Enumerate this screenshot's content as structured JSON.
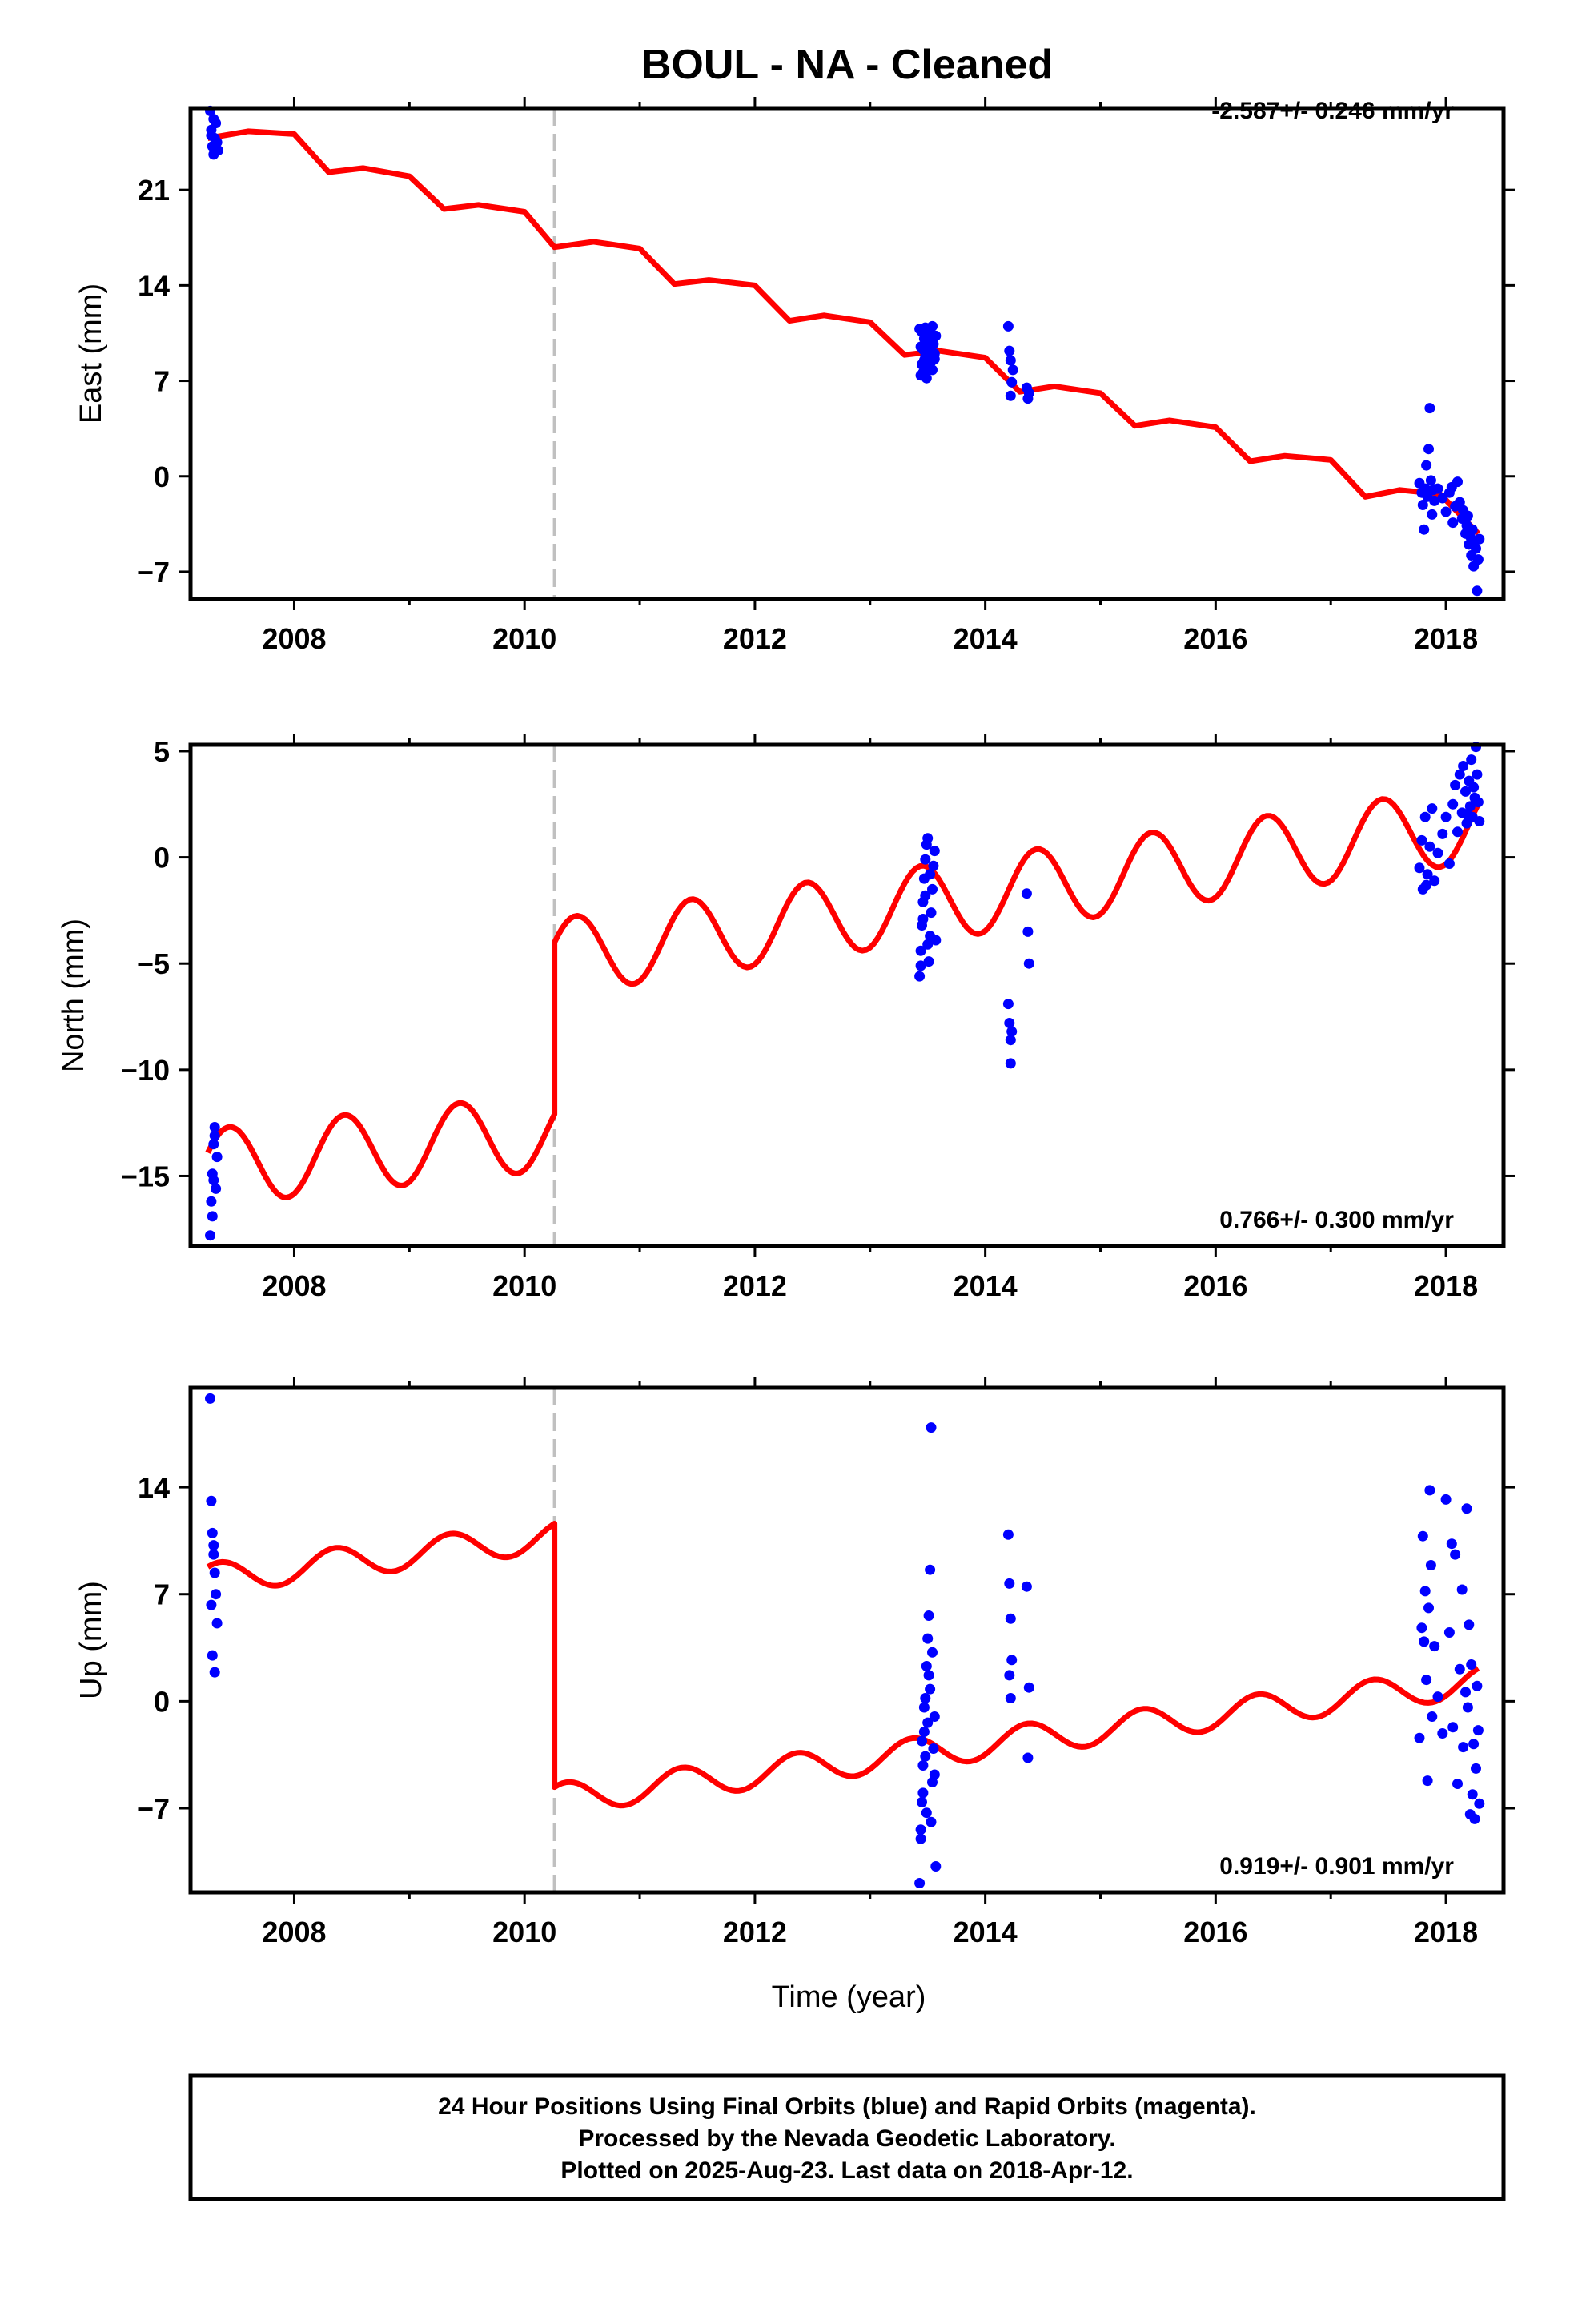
{
  "title": "BOUL  - NA - Cleaned",
  "footer": {
    "lines": [
      "24 Hour Positions Using Final Orbits (blue) and Rapid Orbits (magenta).",
      "Processed by the Nevada Geodetic Laboratory.",
      "Plotted on 2025-Aug-23. Last data on 2018-Apr-12."
    ]
  },
  "colors": {
    "data": "#0000ff",
    "model": "#ff0000",
    "step": "#c0c0c0",
    "frame": "#000000"
  },
  "chart_data": [
    {
      "type": "scatter",
      "name": "east",
      "ylabel": "East (mm)",
      "xlabel": "",
      "rate": "-2.587+/- 0.246 mm/yr",
      "xlim": [
        2007.1,
        2018.5
      ],
      "ylim": [
        -9,
        27
      ],
      "xticks": [
        2008,
        2010,
        2012,
        2014,
        2016,
        2018
      ],
      "yticks": [
        -7,
        0,
        7,
        14,
        21
      ],
      "step_epoch": 2010.26,
      "model": {
        "x": [
          2007.25,
          2007.6,
          2008.0,
          2008.3,
          2008.6,
          2009.0,
          2009.3,
          2009.6,
          2010.0,
          2010.26,
          2010.6,
          2011.0,
          2011.3,
          2011.6,
          2012.0,
          2012.3,
          2012.6,
          2013.0,
          2013.3,
          2013.6,
          2014.0,
          2014.3,
          2014.6,
          2015.0,
          2015.3,
          2015.6,
          2016.0,
          2016.3,
          2016.6,
          2017.0,
          2017.3,
          2017.6,
          2017.95,
          2018.28
        ],
        "y": [
          24.8,
          25.3,
          25.1,
          22.3,
          22.6,
          22.0,
          19.6,
          19.9,
          19.4,
          16.8,
          17.2,
          16.7,
          14.1,
          14.4,
          14.0,
          11.4,
          11.8,
          11.3,
          8.9,
          9.2,
          8.7,
          6.2,
          6.6,
          6.1,
          3.7,
          4.1,
          3.6,
          1.1,
          1.5,
          1.2,
          -1.5,
          -1.0,
          -1.3,
          -4.2
        ]
      },
      "points": {
        "x": [
          2007.27,
          2007.28,
          2007.29,
          2007.3,
          2007.31,
          2007.32,
          2007.33,
          2007.34,
          2007.3,
          2007.28,
          2013.43,
          2013.44,
          2013.45,
          2013.46,
          2013.47,
          2013.48,
          2013.49,
          2013.5,
          2013.51,
          2013.52,
          2013.53,
          2013.54,
          2013.55,
          2013.56,
          2013.57,
          2013.44,
          2013.46,
          2013.48,
          2013.5,
          2013.52,
          2013.54,
          2013.56,
          2013.45,
          2013.47,
          2013.49,
          2013.51,
          2013.53,
          2013.55,
          2014.2,
          2014.21,
          2014.22,
          2014.23,
          2014.22,
          2014.24,
          2014.36,
          2014.37,
          2014.38,
          2017.77,
          2017.79,
          2017.8,
          2017.82,
          2017.83,
          2017.84,
          2017.86,
          2017.87,
          2017.88,
          2017.9,
          2017.85,
          2017.93,
          2017.97,
          2018.0,
          2018.03,
          2018.06,
          2018.08,
          2018.1,
          2018.12,
          2018.14,
          2018.15,
          2018.17,
          2018.18,
          2018.2,
          2018.21,
          2018.22,
          2018.23,
          2018.24,
          2018.25,
          2018.26,
          2018.27,
          2018.28,
          2018.29,
          2017.81,
          2017.89,
          2018.05,
          2018.19
        ],
        "y": [
          26.8,
          25.0,
          24.2,
          23.6,
          24.8,
          25.9,
          24.5,
          23.9,
          26.2,
          25.4,
          10.8,
          9.5,
          8.2,
          7.6,
          10.1,
          8.8,
          9.9,
          7.9,
          10.5,
          9.1,
          8.4,
          11.0,
          9.7,
          8.6,
          10.3,
          7.4,
          9.3,
          10.9,
          8.0,
          9.6,
          7.8,
          9.0,
          10.6,
          8.5,
          7.2,
          9.8,
          8.9,
          10.2,
          11.0,
          9.2,
          8.5,
          6.9,
          5.9,
          7.8,
          6.5,
          5.7,
          6.1,
          -0.5,
          -1.2,
          -2.1,
          -0.9,
          0.8,
          -1.5,
          5.0,
          -0.3,
          -2.8,
          -1.8,
          2.0,
          -0.9,
          -1.6,
          -2.6,
          -1.2,
          -3.4,
          -2.2,
          -0.4,
          -1.9,
          -3.1,
          -2.5,
          -4.2,
          -3.6,
          -5.0,
          -4.4,
          -5.8,
          -3.9,
          -6.6,
          -4.8,
          -5.3,
          -8.4,
          -6.1,
          -4.6,
          -3.9,
          -1.0,
          -0.8,
          -2.9
        ]
      }
    },
    {
      "type": "scatter",
      "name": "north",
      "ylabel": "North (mm)",
      "xlabel": "",
      "rate": "0.766+/- 0.300 mm/yr",
      "xlim": [
        2007.1,
        2018.5
      ],
      "ylim": [
        -18.3,
        5.3
      ],
      "xticks": [
        2008,
        2010,
        2012,
        2014,
        2016,
        2018
      ],
      "yticks": [
        -15,
        -10,
        -5,
        0,
        5
      ],
      "step_epoch": 2010.26,
      "model": {
        "amp": 1.8,
        "period": 1.0,
        "phase": 0.4,
        "segments": [
          {
            "x0": 2007.25,
            "x1": 2010.26,
            "y0": -14.6,
            "y1": -12.9
          },
          {
            "x0": 2010.26,
            "x1": 2018.28,
            "y0": -4.7,
            "y1": 1.6
          }
        ]
      },
      "points": {
        "x": [
          2007.27,
          2007.28,
          2007.29,
          2007.3,
          2007.31,
          2007.32,
          2007.33,
          2007.29,
          2007.31,
          2007.3,
          2013.43,
          2013.44,
          2013.45,
          2013.46,
          2013.47,
          2013.48,
          2013.49,
          2013.5,
          2013.51,
          2013.52,
          2013.53,
          2013.54,
          2013.55,
          2013.56,
          2013.57,
          2013.44,
          2013.46,
          2013.48,
          2013.5,
          2013.52,
          2014.2,
          2014.21,
          2014.22,
          2014.22,
          2014.23,
          2014.36,
          2014.37,
          2014.38,
          2017.77,
          2017.79,
          2017.8,
          2017.82,
          2017.84,
          2017.86,
          2017.88,
          2017.9,
          2017.93,
          2017.97,
          2018.0,
          2018.03,
          2018.06,
          2018.08,
          2018.1,
          2018.12,
          2018.14,
          2018.15,
          2018.17,
          2018.18,
          2018.2,
          2018.21,
          2018.22,
          2018.23,
          2018.24,
          2018.25,
          2018.26,
          2018.27,
          2018.28,
          2018.29,
          2017.83,
          2018.19
        ],
        "y": [
          -17.8,
          -16.2,
          -14.9,
          -13.5,
          -12.7,
          -15.6,
          -14.1,
          -16.9,
          -13.1,
          -15.2,
          -5.6,
          -4.4,
          -3.2,
          -2.1,
          -1.0,
          -0.1,
          0.6,
          0.9,
          -4.9,
          -3.7,
          -2.6,
          -1.5,
          -0.4,
          0.3,
          -3.9,
          -5.1,
          -2.9,
          -1.8,
          -4.1,
          -0.8,
          -6.9,
          -7.8,
          -8.6,
          -9.7,
          -8.2,
          -1.7,
          -3.5,
          -5.0,
          -0.5,
          0.8,
          -1.5,
          1.9,
          -0.8,
          0.5,
          2.3,
          -1.1,
          0.2,
          1.1,
          1.9,
          -0.3,
          2.5,
          3.4,
          1.2,
          3.9,
          2.1,
          4.3,
          3.1,
          1.6,
          3.6,
          2.4,
          4.6,
          1.9,
          3.3,
          2.8,
          5.2,
          3.9,
          2.6,
          1.7,
          -1.3,
          2.0
        ]
      }
    },
    {
      "type": "scatter",
      "name": "up",
      "ylabel": "Up (mm)",
      "xlabel": "Time (year)",
      "rate": "0.919+/- 0.901 mm/yr",
      "xlim": [
        2007.1,
        2018.5
      ],
      "ylim": [
        -12.5,
        20.5
      ],
      "xticks": [
        2008,
        2010,
        2012,
        2014,
        2016,
        2018
      ],
      "yticks": [
        -7,
        0,
        7,
        14
      ],
      "step_epoch": 2010.26,
      "model": {
        "amp": 1.0,
        "period": 1.0,
        "phase": 0.9,
        "segments": [
          {
            "x0": 2007.25,
            "x1": 2010.26,
            "y0": 8.0,
            "y1": 10.8
          },
          {
            "x0": 2010.26,
            "x1": 2018.28,
            "y0": -6.4,
            "y1": 1.3
          }
        ]
      },
      "points": {
        "x": [
          2007.27,
          2007.28,
          2007.29,
          2007.3,
          2007.31,
          2007.32,
          2007.33,
          2007.29,
          2007.31,
          2007.3,
          2007.28,
          2013.43,
          2013.44,
          2013.45,
          2013.46,
          2013.47,
          2013.48,
          2013.49,
          2013.5,
          2013.51,
          2013.52,
          2013.53,
          2013.54,
          2013.55,
          2013.56,
          2013.57,
          2013.44,
          2013.46,
          2013.48,
          2013.5,
          2013.52,
          2013.54,
          2013.56,
          2013.45,
          2013.47,
          2013.49,
          2013.51,
          2013.53,
          2014.2,
          2014.21,
          2014.22,
          2014.22,
          2014.23,
          2014.21,
          2014.36,
          2014.37,
          2014.38,
          2017.77,
          2017.79,
          2017.8,
          2017.82,
          2017.83,
          2017.84,
          2017.86,
          2017.87,
          2017.88,
          2017.9,
          2017.85,
          2017.93,
          2017.97,
          2018.0,
          2018.03,
          2018.06,
          2018.08,
          2018.1,
          2018.12,
          2018.14,
          2018.15,
          2018.17,
          2018.18,
          2018.2,
          2018.21,
          2018.22,
          2018.23,
          2018.24,
          2018.25,
          2018.26,
          2018.27,
          2018.28,
          2018.29,
          2017.81,
          2018.05,
          2018.19
        ],
        "y": [
          19.8,
          13.1,
          11.0,
          9.6,
          8.4,
          7.0,
          5.1,
          3.0,
          1.9,
          10.2,
          6.3,
          -11.9,
          -9.0,
          -6.6,
          -4.2,
          -2.0,
          0.2,
          2.3,
          4.1,
          5.6,
          8.6,
          -7.9,
          -5.3,
          -3.1,
          -1.0,
          -10.8,
          -8.4,
          -6.0,
          -3.6,
          -1.4,
          0.8,
          3.2,
          -4.8,
          -2.6,
          -0.4,
          -7.3,
          1.7,
          17.9,
          10.9,
          7.7,
          5.4,
          0.2,
          2.7,
          1.7,
          7.5,
          -3.7,
          0.9,
          -2.4,
          4.8,
          10.8,
          7.2,
          1.4,
          -5.2,
          13.8,
          8.9,
          -1.0,
          3.6,
          6.1,
          0.3,
          -2.1,
          13.2,
          4.5,
          -1.7,
          9.6,
          -5.4,
          2.1,
          7.3,
          -3.0,
          0.6,
          12.6,
          5.0,
          -7.4,
          2.4,
          -6.1,
          -2.8,
          -7.7,
          -4.4,
          1.0,
          -1.9,
          -6.7,
          3.9,
          10.3,
          -0.4
        ]
      }
    }
  ]
}
